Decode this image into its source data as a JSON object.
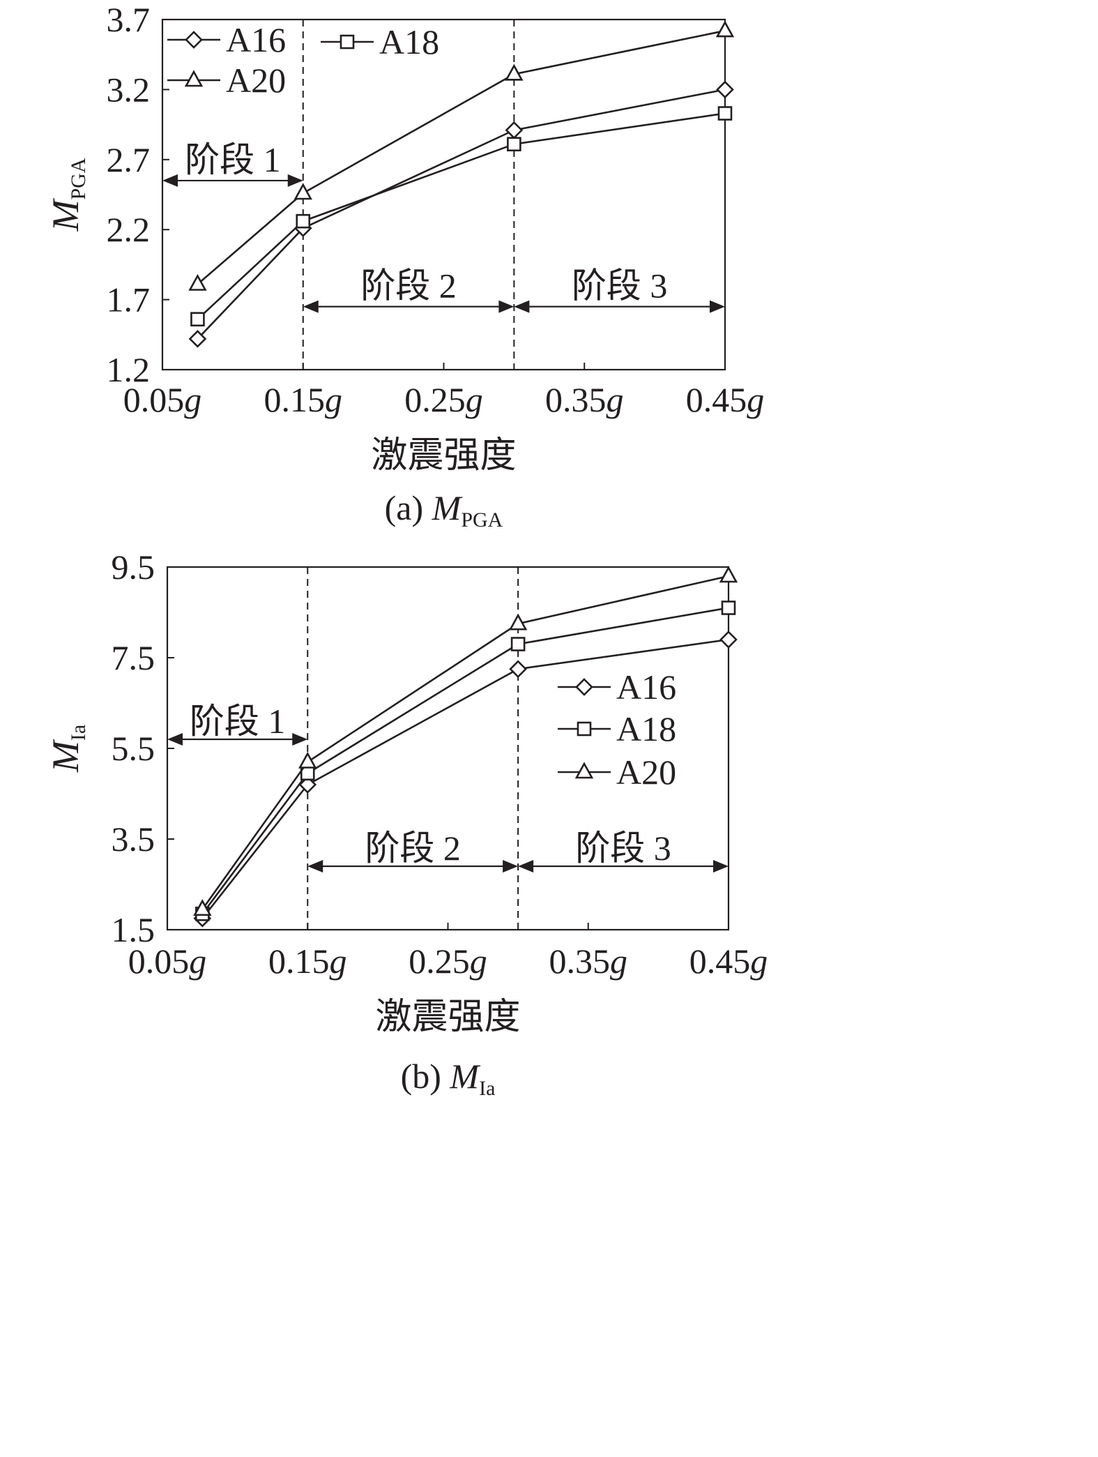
{
  "chart_data": [
    {
      "type": "line",
      "caption": "(a) M",
      "caption_sub": "PGA",
      "ylabel": "M",
      "ylabel_sub": "PGA",
      "xlabel": "激震强度",
      "x_tick_labels": [
        "0.05g",
        "0.15g",
        "0.25g",
        "0.35g",
        "0.45g"
      ],
      "x_ticks": [
        0.05,
        0.15,
        0.25,
        0.35,
        0.45
      ],
      "xlim": [
        0.05,
        0.45
      ],
      "y_ticks": [
        "1.2",
        "1.7",
        "2.2",
        "2.7",
        "3.2",
        "3.7"
      ],
      "ylim": [
        1.2,
        3.7
      ],
      "x": [
        0.075,
        0.15,
        0.3,
        0.45
      ],
      "series": [
        {
          "name": "A16",
          "marker": "diamond",
          "values": [
            1.42,
            2.21,
            2.91,
            3.2
          ]
        },
        {
          "name": "A18",
          "marker": "square",
          "values": [
            1.56,
            2.26,
            2.81,
            3.03
          ]
        },
        {
          "name": "A20",
          "marker": "triangle",
          "values": [
            1.81,
            2.46,
            3.31,
            3.62
          ]
        }
      ],
      "stage_lines": [
        0.15,
        0.3
      ],
      "stages": [
        {
          "label": "阶段 1",
          "x_from": 0.05,
          "x_to": 0.15,
          "y": 2.55,
          "label_y": 2.7
        },
        {
          "label": "阶段 2",
          "x_from": 0.15,
          "x_to": 0.3,
          "y": 1.65,
          "label_y": 1.8
        },
        {
          "label": "阶段 3",
          "x_from": 0.3,
          "x_to": 0.45,
          "y": 1.65,
          "label_y": 1.8
        }
      ],
      "legend_layout": "grid-top-left"
    },
    {
      "type": "line",
      "caption": "(b) M",
      "caption_sub": "Ia",
      "ylabel": "M",
      "ylabel_sub": "Ia",
      "xlabel": "激震强度",
      "x_tick_labels": [
        "0.05g",
        "0.15g",
        "0.25g",
        "0.35g",
        "0.45g"
      ],
      "x_ticks": [
        0.05,
        0.15,
        0.25,
        0.35,
        0.45
      ],
      "xlim": [
        0.05,
        0.45
      ],
      "y_ticks": [
        "1.5",
        "3.5",
        "5.5",
        "7.5",
        "9.5"
      ],
      "ylim": [
        1.5,
        9.5
      ],
      "x": [
        0.075,
        0.15,
        0.3,
        0.45
      ],
      "series": [
        {
          "name": "A16",
          "marker": "diamond",
          "values": [
            1.75,
            4.7,
            7.25,
            7.9
          ]
        },
        {
          "name": "A18",
          "marker": "square",
          "values": [
            1.85,
            4.95,
            7.8,
            8.6
          ]
        },
        {
          "name": "A20",
          "marker": "triangle",
          "values": [
            1.95,
            5.2,
            8.25,
            9.3
          ]
        }
      ],
      "stage_lines": [
        0.15,
        0.3
      ],
      "stages": [
        {
          "label": "阶段 1",
          "x_from": 0.05,
          "x_to": 0.15,
          "y": 5.7,
          "label_y": 6.1
        },
        {
          "label": "阶段 2",
          "x_from": 0.15,
          "x_to": 0.3,
          "y": 2.9,
          "label_y": 3.3
        },
        {
          "label": "阶段 3",
          "x_from": 0.3,
          "x_to": 0.45,
          "y": 2.9,
          "label_y": 3.3
        }
      ],
      "legend_layout": "column-right"
    }
  ]
}
